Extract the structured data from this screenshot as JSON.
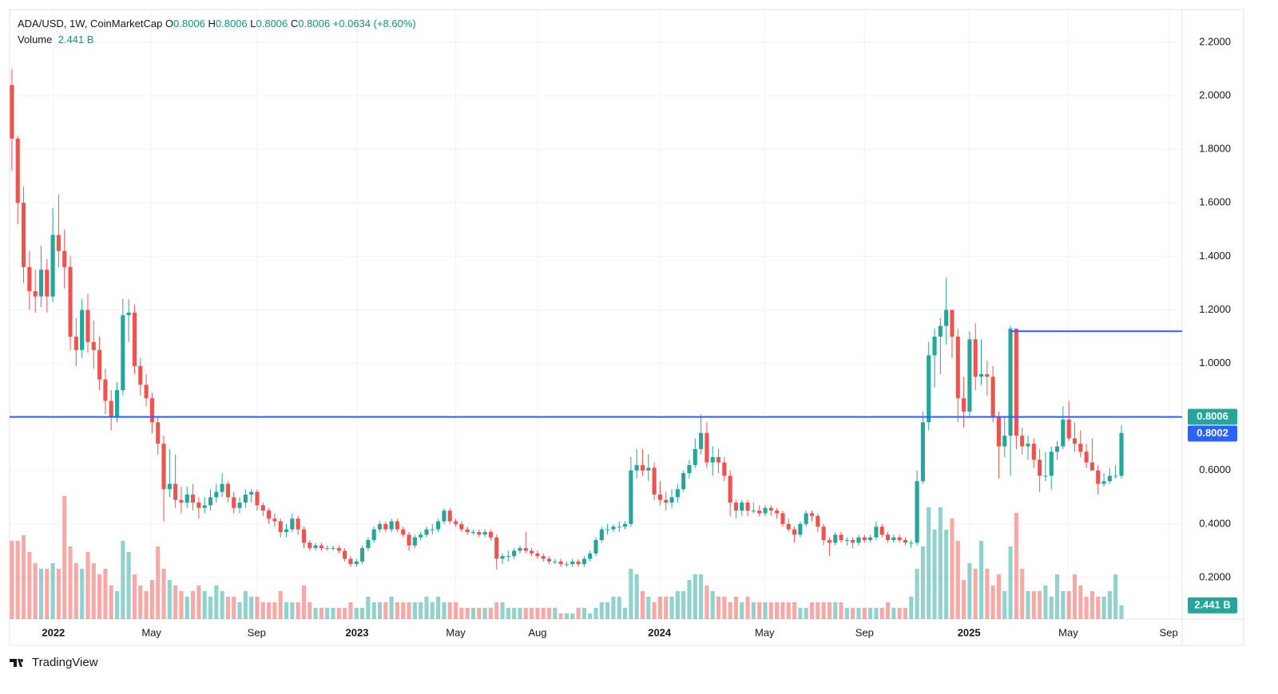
{
  "chart_data": {
    "type": "candlestick",
    "header": {
      "symbol": "ADA/USD, 1W, CoinMarketCap",
      "fields": [
        {
          "k": "O",
          "v": "0.8006"
        },
        {
          "k": "H",
          "v": "0.8006"
        },
        {
          "k": "L",
          "v": "0.8006"
        },
        {
          "k": "C",
          "v": "0.8006"
        }
      ],
      "change": "+0.0634 (+8.60%)",
      "volume_title": "Volume",
      "volume_value": "2.441 B"
    },
    "up_color": "#26a69a",
    "down_color": "#ef5350",
    "grid": true,
    "ylim": [
      0.045,
      2.322
    ],
    "yticks": [
      {
        "value": 0.2,
        "label": "0.2000"
      },
      {
        "value": 0.4,
        "label": "0.4000"
      },
      {
        "value": 0.6,
        "label": "0.6000"
      },
      {
        "value": 0.8,
        "label": "0.8000"
      },
      {
        "value": 1.0,
        "label": "1.0000"
      },
      {
        "value": 1.2,
        "label": "1.2000"
      },
      {
        "value": 1.4,
        "label": "1.4000"
      },
      {
        "value": 1.6,
        "label": "1.6000"
      },
      {
        "value": 1.8,
        "label": "1.8000"
      },
      {
        "value": 2.0,
        "label": "2.0000"
      },
      {
        "value": 2.2,
        "label": "2.2000"
      }
    ],
    "xlim": [
      -0.4,
      200.4
    ],
    "xticks": [
      {
        "value": 7.1,
        "label": "2022"
      },
      {
        "value": 23.9,
        "label": "May"
      },
      {
        "value": 41.9,
        "label": "Sep"
      },
      {
        "value": 59.1,
        "label": "2023"
      },
      {
        "value": 76,
        "label": "May"
      },
      {
        "value": 90,
        "label": "Aug"
      },
      {
        "value": 110.9,
        "label": "2024"
      },
      {
        "value": 128.9,
        "label": "May"
      },
      {
        "value": 146,
        "label": "Sep"
      },
      {
        "value": 163.9,
        "label": "2025"
      },
      {
        "value": 180.9,
        "label": "May"
      },
      {
        "value": 198.1,
        "label": "Sep"
      }
    ],
    "volume_ylim": [
      0,
      30
    ],
    "last_price": 0.8006,
    "hlines": [
      {
        "value": 0.8002,
        "start": -0.4,
        "color": "#2962ff",
        "label": 0.8002
      },
      {
        "value": 1.12,
        "start": 171,
        "color": "#2962ff"
      }
    ],
    "ohlc": [
      [
        2.04,
        2.1,
        1.72,
        1.84
      ],
      [
        1.84,
        1.85,
        1.52,
        1.6
      ],
      [
        1.6,
        1.66,
        1.3,
        1.36
      ],
      [
        1.36,
        1.42,
        1.2,
        1.27
      ],
      [
        1.27,
        1.35,
        1.19,
        1.25
      ],
      [
        1.25,
        1.44,
        1.21,
        1.35
      ],
      [
        1.35,
        1.39,
        1.19,
        1.25
      ],
      [
        1.25,
        1.58,
        1.23,
        1.48
      ],
      [
        1.48,
        1.63,
        1.36,
        1.42
      ],
      [
        1.42,
        1.5,
        1.28,
        1.36
      ],
      [
        1.36,
        1.4,
        1.05,
        1.1
      ],
      [
        1.1,
        1.17,
        0.99,
        1.05
      ],
      [
        1.05,
        1.24,
        1.02,
        1.2
      ],
      [
        1.2,
        1.26,
        1.04,
        1.08
      ],
      [
        1.08,
        1.16,
        0.98,
        1.05
      ],
      [
        1.05,
        1.1,
        0.9,
        0.94
      ],
      [
        0.94,
        0.98,
        0.81,
        0.86
      ],
      [
        0.86,
        0.9,
        0.75,
        0.8
      ],
      [
        0.8,
        0.93,
        0.78,
        0.9
      ],
      [
        0.9,
        1.24,
        0.88,
        1.18
      ],
      [
        1.18,
        1.24,
        1.08,
        1.19
      ],
      [
        1.19,
        1.22,
        0.96,
        0.99
      ],
      [
        0.99,
        1.02,
        0.88,
        0.92
      ],
      [
        0.92,
        0.96,
        0.84,
        0.87
      ],
      [
        0.87,
        0.89,
        0.74,
        0.78
      ],
      [
        0.78,
        0.8,
        0.66,
        0.7
      ],
      [
        0.7,
        0.73,
        0.41,
        0.53
      ],
      [
        0.53,
        0.68,
        0.5,
        0.55
      ],
      [
        0.55,
        0.66,
        0.46,
        0.49
      ],
      [
        0.49,
        0.54,
        0.44,
        0.48
      ],
      [
        0.48,
        0.54,
        0.46,
        0.51
      ],
      [
        0.51,
        0.55,
        0.45,
        0.48
      ],
      [
        0.48,
        0.5,
        0.42,
        0.46
      ],
      [
        0.46,
        0.5,
        0.44,
        0.47
      ],
      [
        0.47,
        0.53,
        0.45,
        0.5
      ],
      [
        0.5,
        0.55,
        0.48,
        0.52
      ],
      [
        0.52,
        0.59,
        0.5,
        0.55
      ],
      [
        0.55,
        0.56,
        0.48,
        0.5
      ],
      [
        0.5,
        0.52,
        0.44,
        0.46
      ],
      [
        0.46,
        0.5,
        0.44,
        0.48
      ],
      [
        0.48,
        0.53,
        0.46,
        0.51
      ],
      [
        0.51,
        0.53,
        0.48,
        0.52
      ],
      [
        0.52,
        0.53,
        0.45,
        0.47
      ],
      [
        0.47,
        0.48,
        0.43,
        0.45
      ],
      [
        0.45,
        0.46,
        0.4,
        0.42
      ],
      [
        0.42,
        0.44,
        0.39,
        0.41
      ],
      [
        0.41,
        0.42,
        0.35,
        0.37
      ],
      [
        0.37,
        0.4,
        0.35,
        0.38
      ],
      [
        0.38,
        0.44,
        0.37,
        0.42
      ],
      [
        0.42,
        0.43,
        0.36,
        0.38
      ],
      [
        0.38,
        0.39,
        0.31,
        0.33
      ],
      [
        0.33,
        0.34,
        0.3,
        0.31
      ],
      [
        0.31,
        0.33,
        0.3,
        0.32
      ],
      [
        0.32,
        0.33,
        0.3,
        0.31
      ],
      [
        0.31,
        0.32,
        0.3,
        0.31
      ],
      [
        0.31,
        0.32,
        0.3,
        0.31
      ],
      [
        0.31,
        0.32,
        0.29,
        0.3
      ],
      [
        0.3,
        0.31,
        0.26,
        0.27
      ],
      [
        0.27,
        0.28,
        0.24,
        0.25
      ],
      [
        0.25,
        0.27,
        0.24,
        0.26
      ],
      [
        0.26,
        0.32,
        0.25,
        0.31
      ],
      [
        0.31,
        0.35,
        0.3,
        0.34
      ],
      [
        0.34,
        0.39,
        0.33,
        0.38
      ],
      [
        0.38,
        0.41,
        0.37,
        0.4
      ],
      [
        0.4,
        0.41,
        0.37,
        0.38
      ],
      [
        0.38,
        0.42,
        0.37,
        0.41
      ],
      [
        0.41,
        0.42,
        0.37,
        0.38
      ],
      [
        0.38,
        0.39,
        0.35,
        0.36
      ],
      [
        0.36,
        0.37,
        0.3,
        0.32
      ],
      [
        0.32,
        0.36,
        0.31,
        0.35
      ],
      [
        0.35,
        0.37,
        0.34,
        0.36
      ],
      [
        0.36,
        0.39,
        0.35,
        0.38
      ],
      [
        0.38,
        0.4,
        0.36,
        0.38
      ],
      [
        0.38,
        0.42,
        0.37,
        0.41
      ],
      [
        0.41,
        0.46,
        0.4,
        0.45
      ],
      [
        0.45,
        0.46,
        0.4,
        0.41
      ],
      [
        0.41,
        0.42,
        0.39,
        0.4
      ],
      [
        0.4,
        0.41,
        0.37,
        0.38
      ],
      [
        0.38,
        0.39,
        0.36,
        0.37
      ],
      [
        0.37,
        0.38,
        0.36,
        0.37
      ],
      [
        0.37,
        0.38,
        0.35,
        0.36
      ],
      [
        0.36,
        0.38,
        0.35,
        0.37
      ],
      [
        0.37,
        0.38,
        0.34,
        0.35
      ],
      [
        0.35,
        0.36,
        0.23,
        0.27
      ],
      [
        0.27,
        0.29,
        0.25,
        0.28
      ],
      [
        0.28,
        0.3,
        0.26,
        0.28
      ],
      [
        0.28,
        0.31,
        0.27,
        0.3
      ],
      [
        0.3,
        0.32,
        0.29,
        0.31
      ],
      [
        0.31,
        0.37,
        0.29,
        0.3
      ],
      [
        0.3,
        0.31,
        0.28,
        0.29
      ],
      [
        0.29,
        0.3,
        0.27,
        0.28
      ],
      [
        0.28,
        0.29,
        0.26,
        0.27
      ],
      [
        0.27,
        0.28,
        0.25,
        0.26
      ],
      [
        0.26,
        0.27,
        0.25,
        0.26
      ],
      [
        0.26,
        0.27,
        0.24,
        0.25
      ],
      [
        0.25,
        0.26,
        0.24,
        0.25
      ],
      [
        0.25,
        0.27,
        0.24,
        0.26
      ],
      [
        0.26,
        0.27,
        0.24,
        0.25
      ],
      [
        0.25,
        0.28,
        0.24,
        0.27
      ],
      [
        0.27,
        0.3,
        0.26,
        0.29
      ],
      [
        0.29,
        0.35,
        0.28,
        0.34
      ],
      [
        0.34,
        0.39,
        0.33,
        0.38
      ],
      [
        0.38,
        0.4,
        0.36,
        0.38
      ],
      [
        0.38,
        0.4,
        0.37,
        0.39
      ],
      [
        0.39,
        0.41,
        0.37,
        0.39
      ],
      [
        0.39,
        0.41,
        0.38,
        0.4
      ],
      [
        0.4,
        0.65,
        0.39,
        0.6
      ],
      [
        0.6,
        0.68,
        0.57,
        0.62
      ],
      [
        0.62,
        0.68,
        0.58,
        0.6
      ],
      [
        0.6,
        0.66,
        0.56,
        0.61
      ],
      [
        0.61,
        0.63,
        0.49,
        0.51
      ],
      [
        0.51,
        0.56,
        0.47,
        0.49
      ],
      [
        0.49,
        0.52,
        0.45,
        0.48
      ],
      [
        0.48,
        0.53,
        0.46,
        0.5
      ],
      [
        0.5,
        0.55,
        0.48,
        0.53
      ],
      [
        0.53,
        0.6,
        0.52,
        0.59
      ],
      [
        0.59,
        0.64,
        0.57,
        0.62
      ],
      [
        0.62,
        0.72,
        0.61,
        0.68
      ],
      [
        0.68,
        0.81,
        0.66,
        0.74
      ],
      [
        0.74,
        0.78,
        0.61,
        0.63
      ],
      [
        0.63,
        0.69,
        0.58,
        0.65
      ],
      [
        0.65,
        0.68,
        0.59,
        0.63
      ],
      [
        0.63,
        0.65,
        0.56,
        0.58
      ],
      [
        0.58,
        0.6,
        0.43,
        0.48
      ],
      [
        0.48,
        0.49,
        0.42,
        0.45
      ],
      [
        0.45,
        0.49,
        0.43,
        0.48
      ],
      [
        0.48,
        0.49,
        0.43,
        0.45
      ],
      [
        0.45,
        0.48,
        0.44,
        0.45
      ],
      [
        0.45,
        0.47,
        0.43,
        0.44
      ],
      [
        0.44,
        0.47,
        0.43,
        0.46
      ],
      [
        0.46,
        0.47,
        0.43,
        0.45
      ],
      [
        0.45,
        0.46,
        0.42,
        0.44
      ],
      [
        0.44,
        0.45,
        0.39,
        0.4
      ],
      [
        0.4,
        0.42,
        0.37,
        0.38
      ],
      [
        0.38,
        0.39,
        0.33,
        0.36
      ],
      [
        0.36,
        0.41,
        0.35,
        0.4
      ],
      [
        0.4,
        0.45,
        0.39,
        0.44
      ],
      [
        0.44,
        0.45,
        0.41,
        0.43
      ],
      [
        0.43,
        0.44,
        0.37,
        0.39
      ],
      [
        0.39,
        0.4,
        0.32,
        0.34
      ],
      [
        0.34,
        0.35,
        0.28,
        0.33
      ],
      [
        0.33,
        0.37,
        0.32,
        0.36
      ],
      [
        0.36,
        0.37,
        0.33,
        0.34
      ],
      [
        0.34,
        0.35,
        0.32,
        0.34
      ],
      [
        0.34,
        0.35,
        0.31,
        0.33
      ],
      [
        0.33,
        0.36,
        0.32,
        0.35
      ],
      [
        0.35,
        0.36,
        0.33,
        0.34
      ],
      [
        0.34,
        0.36,
        0.33,
        0.35
      ],
      [
        0.35,
        0.41,
        0.34,
        0.39
      ],
      [
        0.39,
        0.4,
        0.35,
        0.36
      ],
      [
        0.36,
        0.37,
        0.33,
        0.34
      ],
      [
        0.34,
        0.36,
        0.33,
        0.35
      ],
      [
        0.35,
        0.36,
        0.33,
        0.34
      ],
      [
        0.34,
        0.35,
        0.32,
        0.33
      ],
      [
        0.33,
        0.34,
        0.31,
        0.33
      ],
      [
        0.33,
        0.6,
        0.32,
        0.56
      ],
      [
        0.56,
        0.82,
        0.55,
        0.78
      ],
      [
        0.78,
        1.08,
        0.75,
        1.03
      ],
      [
        1.03,
        1.13,
        0.91,
        1.1
      ],
      [
        1.1,
        1.17,
        0.96,
        1.14
      ],
      [
        1.14,
        1.32,
        1.07,
        1.2
      ],
      [
        1.2,
        1.2,
        1.02,
        1.1
      ],
      [
        1.1,
        1.13,
        0.78,
        0.87
      ],
      [
        0.87,
        0.95,
        0.76,
        0.82
      ],
      [
        0.82,
        1.12,
        0.8,
        1.09
      ],
      [
        1.09,
        1.15,
        0.9,
        0.95
      ],
      [
        0.95,
        1.09,
        0.92,
        0.96
      ],
      [
        0.96,
        1.01,
        0.88,
        0.95
      ],
      [
        0.95,
        0.99,
        0.78,
        0.8
      ],
      [
        0.8,
        0.82,
        0.57,
        0.69
      ],
      [
        0.69,
        0.8,
        0.65,
        0.73
      ],
      [
        0.73,
        1.14,
        0.58,
        1.13
      ],
      [
        1.13,
        1.13,
        0.68,
        0.73
      ],
      [
        0.73,
        0.76,
        0.66,
        0.69
      ],
      [
        0.69,
        0.73,
        0.64,
        0.7
      ],
      [
        0.7,
        0.72,
        0.61,
        0.64
      ],
      [
        0.64,
        0.68,
        0.52,
        0.58
      ],
      [
        0.58,
        0.67,
        0.56,
        0.58
      ],
      [
        0.58,
        0.69,
        0.53,
        0.67
      ],
      [
        0.67,
        0.71,
        0.64,
        0.69
      ],
      [
        0.69,
        0.84,
        0.68,
        0.79
      ],
      [
        0.79,
        0.86,
        0.71,
        0.72
      ],
      [
        0.72,
        0.78,
        0.67,
        0.7
      ],
      [
        0.7,
        0.75,
        0.65,
        0.67
      ],
      [
        0.67,
        0.7,
        0.61,
        0.63
      ],
      [
        0.63,
        0.72,
        0.6,
        0.6
      ],
      [
        0.6,
        0.62,
        0.51,
        0.55
      ],
      [
        0.55,
        0.59,
        0.54,
        0.56
      ],
      [
        0.56,
        0.61,
        0.55,
        0.58
      ],
      [
        0.58,
        0.62,
        0.57,
        0.58
      ],
      [
        0.58,
        0.77,
        0.57,
        0.74
      ]
    ],
    "volume": [
      14,
      14,
      15,
      12,
      10,
      9,
      9,
      10,
      9,
      22,
      13,
      10,
      9,
      12,
      10,
      8,
      9,
      6,
      5,
      14,
      12,
      8,
      6,
      5,
      7,
      13,
      9,
      7,
      6,
      5,
      4,
      5,
      6,
      5,
      4,
      6,
      5,
      4,
      4,
      3,
      5,
      4,
      4,
      3,
      3,
      3,
      5,
      3,
      3,
      3,
      6,
      3,
      2,
      2,
      2,
      2,
      2,
      2,
      3,
      2,
      2,
      4,
      3,
      3,
      3,
      4,
      3,
      3,
      3,
      3,
      3,
      4,
      3,
      4,
      3,
      3,
      3,
      2,
      2,
      2,
      2,
      2,
      2,
      3,
      3,
      2,
      2,
      2,
      2,
      2,
      2,
      2,
      2,
      2,
      1,
      1,
      1,
      2,
      2,
      1,
      2,
      3,
      3,
      4,
      4,
      2,
      9,
      8,
      5,
      4,
      3,
      4,
      4,
      4,
      5,
      5,
      7,
      8,
      8,
      6,
      5,
      4,
      4,
      3,
      4,
      3,
      4,
      3,
      3,
      3,
      3,
      3,
      3,
      3,
      3,
      2,
      2,
      3,
      3,
      3,
      3,
      3,
      3,
      2,
      2,
      2,
      2,
      2,
      2,
      2,
      3,
      2,
      2,
      2,
      4,
      9,
      13,
      20,
      16,
      20,
      16,
      18,
      14,
      7,
      10,
      9,
      14,
      9,
      6,
      8,
      5,
      13,
      19,
      9,
      5,
      5,
      5,
      6,
      4,
      8,
      5,
      5,
      8,
      6,
      4,
      5,
      4,
      4,
      5,
      8,
      2.441
    ],
    "footer": "TradingView"
  }
}
